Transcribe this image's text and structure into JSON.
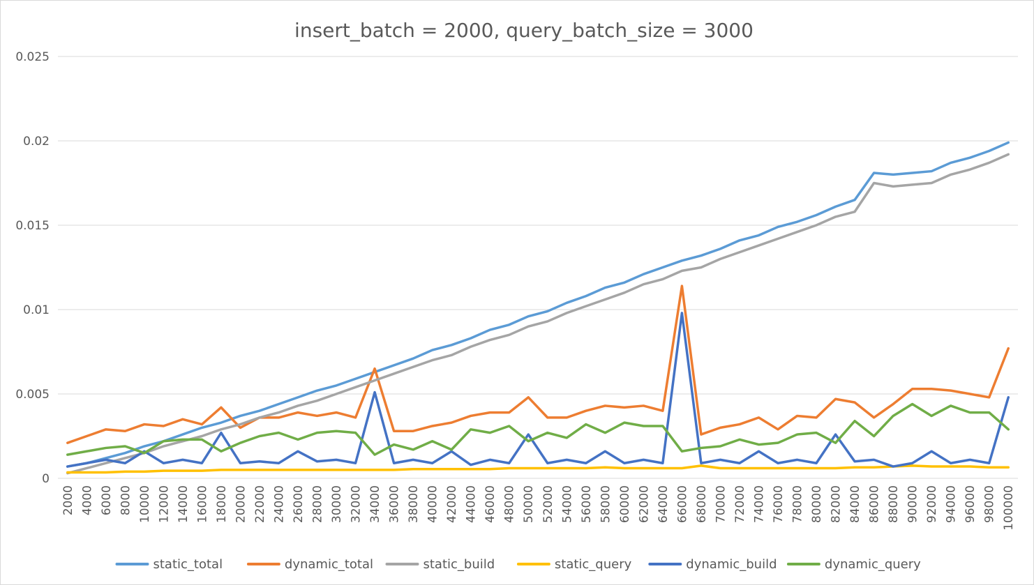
{
  "chart_data": {
    "type": "line",
    "title": "insert_batch = 2000, query_batch_size = 3000",
    "xlabel": "",
    "ylabel": "",
    "ylim": [
      0,
      0.025
    ],
    "yticks": [
      0,
      0.005,
      0.01,
      0.015,
      0.02,
      0.025
    ],
    "ytick_labels": [
      "0",
      "0.005",
      "0.01",
      "0.015",
      "0.02",
      "0.025"
    ],
    "grid": true,
    "legend_position": "bottom",
    "categories": [
      "2000",
      "4000",
      "6000",
      "8000",
      "10000",
      "12000",
      "14000",
      "16000",
      "18000",
      "20000",
      "22000",
      "24000",
      "26000",
      "28000",
      "30000",
      "32000",
      "34000",
      "36000",
      "38000",
      "40000",
      "42000",
      "44000",
      "46000",
      "48000",
      "50000",
      "52000",
      "54000",
      "56000",
      "58000",
      "60000",
      "62000",
      "64000",
      "66000",
      "68000",
      "70000",
      "72000",
      "74000",
      "76000",
      "78000",
      "80000",
      "82000",
      "84000",
      "86000",
      "88000",
      "90000",
      "92000",
      "94000",
      "96000",
      "98000",
      "100000"
    ],
    "series": [
      {
        "name": "static_total",
        "color": "#5b9bd5",
        "values": [
          0.0007,
          0.0009,
          0.0012,
          0.0015,
          0.0019,
          0.0022,
          0.0026,
          0.003,
          0.0033,
          0.0037,
          0.004,
          0.0044,
          0.0048,
          0.0052,
          0.0055,
          0.0059,
          0.0063,
          0.0067,
          0.0071,
          0.0076,
          0.0079,
          0.0083,
          0.0088,
          0.0091,
          0.0096,
          0.0099,
          0.0104,
          0.0108,
          0.0113,
          0.0116,
          0.0121,
          0.0125,
          0.0129,
          0.0132,
          0.0136,
          0.0141,
          0.0144,
          0.0149,
          0.0152,
          0.0156,
          0.0161,
          0.0165,
          0.0181,
          0.018,
          0.0181,
          0.0182,
          0.0187,
          0.019,
          0.0194,
          0.0199
        ]
      },
      {
        "name": "dynamic_total",
        "color": "#ed7d31",
        "values": [
          0.0021,
          0.0025,
          0.0029,
          0.0028,
          0.0032,
          0.0031,
          0.0035,
          0.0032,
          0.0042,
          0.003,
          0.0036,
          0.0036,
          0.0039,
          0.0037,
          0.0039,
          0.0036,
          0.0065,
          0.0028,
          0.0028,
          0.0031,
          0.0033,
          0.0037,
          0.0039,
          0.0039,
          0.0048,
          0.0036,
          0.0036,
          0.004,
          0.0043,
          0.0042,
          0.0043,
          0.004,
          0.0114,
          0.0026,
          0.003,
          0.0032,
          0.0036,
          0.0029,
          0.0037,
          0.0036,
          0.0047,
          0.0045,
          0.0036,
          0.0044,
          0.0053,
          0.0053,
          0.0052,
          0.005,
          0.0048,
          0.0077
        ]
      },
      {
        "name": "static_build",
        "color": "#a5a5a5",
        "values": [
          0.0003,
          0.0006,
          0.0009,
          0.0012,
          0.0015,
          0.0019,
          0.0022,
          0.0025,
          0.0029,
          0.0032,
          0.0036,
          0.0039,
          0.0043,
          0.0046,
          0.005,
          0.0054,
          0.0058,
          0.0062,
          0.0066,
          0.007,
          0.0073,
          0.0078,
          0.0082,
          0.0085,
          0.009,
          0.0093,
          0.0098,
          0.0102,
          0.0106,
          0.011,
          0.0115,
          0.0118,
          0.0123,
          0.0125,
          0.013,
          0.0134,
          0.0138,
          0.0142,
          0.0146,
          0.015,
          0.0155,
          0.0158,
          0.0175,
          0.0173,
          0.0174,
          0.0175,
          0.018,
          0.0183,
          0.0187,
          0.0192
        ]
      },
      {
        "name": "static_query",
        "color": "#ffc000",
        "values": [
          0.00035,
          0.00035,
          0.00035,
          0.0004,
          0.0004,
          0.00045,
          0.00045,
          0.00045,
          0.0005,
          0.0005,
          0.0005,
          0.0005,
          0.0005,
          0.0005,
          0.0005,
          0.0005,
          0.0005,
          0.0005,
          0.00055,
          0.00055,
          0.00055,
          0.00055,
          0.00055,
          0.0006,
          0.0006,
          0.0006,
          0.0006,
          0.0006,
          0.00065,
          0.0006,
          0.0006,
          0.0006,
          0.0006,
          0.00075,
          0.0006,
          0.0006,
          0.0006,
          0.0006,
          0.0006,
          0.0006,
          0.0006,
          0.00065,
          0.00065,
          0.0007,
          0.00075,
          0.0007,
          0.0007,
          0.0007,
          0.00065,
          0.00065
        ]
      },
      {
        "name": "dynamic_build",
        "color": "#4472c4",
        "values": [
          0.0007,
          0.0009,
          0.0011,
          0.0009,
          0.0016,
          0.0009,
          0.0011,
          0.0009,
          0.0027,
          0.0009,
          0.001,
          0.0009,
          0.0016,
          0.001,
          0.0011,
          0.0009,
          0.0051,
          0.0009,
          0.0011,
          0.0009,
          0.0016,
          0.0008,
          0.0011,
          0.0009,
          0.0026,
          0.0009,
          0.0011,
          0.0009,
          0.0016,
          0.0009,
          0.0011,
          0.0009,
          0.0098,
          0.0009,
          0.0011,
          0.0009,
          0.0016,
          0.0009,
          0.0011,
          0.0009,
          0.0026,
          0.001,
          0.0011,
          0.0007,
          0.0009,
          0.0016,
          0.0009,
          0.0011,
          0.0009,
          0.0048
        ]
      },
      {
        "name": "dynamic_query",
        "color": "#70ad47",
        "values": [
          0.0014,
          0.0016,
          0.0018,
          0.0019,
          0.0015,
          0.0022,
          0.0023,
          0.0023,
          0.0016,
          0.0021,
          0.0025,
          0.0027,
          0.0023,
          0.0027,
          0.0028,
          0.0027,
          0.0014,
          0.002,
          0.0017,
          0.0022,
          0.0017,
          0.0029,
          0.0027,
          0.0031,
          0.0022,
          0.0027,
          0.0024,
          0.0032,
          0.0027,
          0.0033,
          0.0031,
          0.0031,
          0.0016,
          0.0018,
          0.0019,
          0.0023,
          0.002,
          0.0021,
          0.0026,
          0.0027,
          0.0021,
          0.0034,
          0.0025,
          0.0037,
          0.0044,
          0.0037,
          0.0043,
          0.0039,
          0.0039,
          0.0029
        ]
      }
    ]
  }
}
